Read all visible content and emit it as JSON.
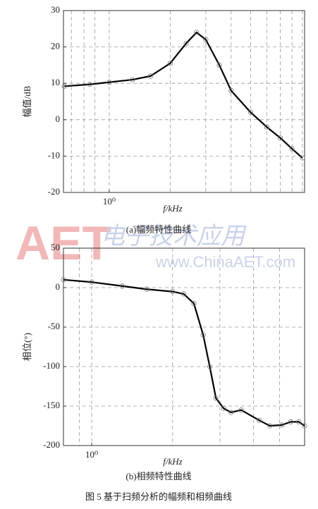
{
  "chart_data": [
    {
      "type": "line",
      "caption": "(a)幅频特性曲线",
      "xlabel": "f/kHz",
      "ylabel": "幅值/dB",
      "log_x": true,
      "grid": true,
      "color": "#000000",
      "markers": true,
      "x": [
        0.6,
        0.8,
        1.0,
        1.3,
        1.6,
        2.0,
        2.4,
        2.7,
        3.0,
        3.5,
        4.0,
        5.0,
        6.0,
        7.0,
        8.0,
        9.0
      ],
      "values": [
        9.2,
        9.7,
        10.3,
        11,
        12,
        15.5,
        21,
        24,
        22,
        15,
        8,
        2,
        -2,
        -5,
        -8,
        -10.5
      ],
      "xlim": [
        0.594,
        9.23
      ],
      "ylim": [
        -20,
        30
      ],
      "yticks": [
        -20,
        -10,
        0,
        10,
        20,
        30
      ],
      "xticks": [
        {
          "value": 1,
          "label": "10⁰"
        }
      ],
      "x_minor_ticks": [
        0.65,
        0.75,
        0.85,
        1,
        2,
        3,
        4,
        5,
        6,
        7,
        8,
        9
      ]
    },
    {
      "type": "line",
      "caption": "(b)相频特性曲线",
      "xlabel": "f/kHz",
      "ylabel": "相位(°)",
      "log_x": true,
      "grid": true,
      "color": "#000000",
      "markers": true,
      "x": [
        0.785,
        1.0,
        1.3,
        1.6,
        2.0,
        2.2,
        2.4,
        2.6,
        2.75,
        2.9,
        3.1,
        3.3,
        3.6,
        4.2,
        4.6,
        5.1,
        5.5,
        5.9,
        6.2
      ],
      "values": [
        10,
        7,
        2,
        -2,
        -5,
        -8,
        -20,
        -60,
        -100,
        -140,
        -153,
        -158,
        -155,
        -168,
        -175,
        -174,
        -170,
        -170,
        -175
      ],
      "xlim": [
        0.785,
        6.2
      ],
      "ylim": [
        -200,
        50
      ],
      "yticks": [
        -200,
        -150,
        -100,
        -50,
        0,
        50
      ],
      "xticks": [
        {
          "value": 1,
          "label": "10⁰"
        }
      ],
      "x_minor_ticks": [
        0.9,
        1,
        2,
        3,
        4,
        5
      ]
    }
  ],
  "watermark": {
    "logo": "AET",
    "brand": "电子技术应用",
    "url": "www.ChinaAET.com"
  },
  "figure_caption": "图 5  基于扫频分析的幅频和相频曲线"
}
